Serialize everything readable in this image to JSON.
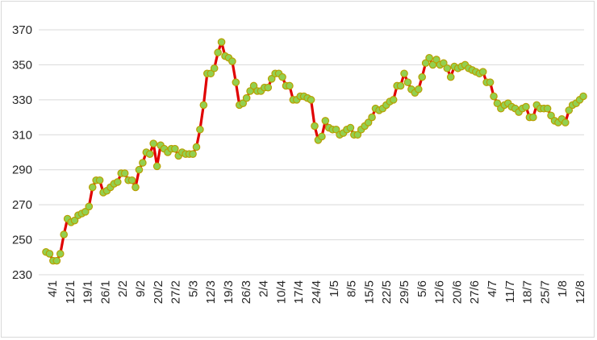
{
  "chart_data": {
    "type": "line",
    "title": "",
    "xlabel": "",
    "ylabel": "",
    "ylim": [
      230,
      370
    ],
    "yticks": [
      230,
      250,
      270,
      290,
      310,
      330,
      350,
      370
    ],
    "xtick_labels": [
      "4/1",
      "12/1",
      "19/1",
      "26/1",
      "2/2",
      "9/2",
      "20/2",
      "27/2",
      "5/3",
      "12/3",
      "19/3",
      "26/3",
      "2/4",
      "10/4",
      "17/4",
      "24/4",
      "1/5",
      "8/5",
      "15/5",
      "22/5",
      "29/5",
      "5/6",
      "12/6",
      "20/6",
      "27/6",
      "4/7",
      "11/7",
      "18/7",
      "25/7",
      "1/8",
      "12/8"
    ],
    "grid": "horizontal",
    "line_color": "#e00000",
    "marker_fill": "#92d050",
    "marker_edge": "#b8a000",
    "series": [
      {
        "values": [
          243,
          242,
          238,
          238,
          242,
          253,
          262,
          260,
          261,
          264,
          265,
          266,
          269,
          280,
          284,
          284,
          277,
          278,
          280,
          282,
          283,
          288,
          288,
          284,
          284,
          280,
          290,
          294,
          300,
          299,
          305,
          292,
          304,
          302,
          300,
          302,
          302,
          298,
          300,
          299,
          299,
          299,
          303,
          313,
          327,
          345,
          345,
          348,
          357,
          363,
          355,
          354,
          352,
          340,
          327,
          328,
          331,
          335,
          338,
          335,
          335,
          337,
          337,
          342,
          345,
          345,
          343,
          338,
          338,
          330,
          330,
          332,
          332,
          331,
          330,
          315,
          307,
          309,
          318,
          314,
          313,
          313,
          310,
          311,
          313,
          314,
          310,
          310,
          313,
          315,
          317,
          320,
          325,
          324,
          325,
          327,
          329,
          330,
          338,
          338,
          345,
          340,
          336,
          334,
          336,
          343,
          351,
          354,
          350,
          353,
          350,
          351,
          348,
          343,
          349,
          348,
          349,
          350,
          348,
          347,
          346,
          345,
          346,
          340,
          340,
          332,
          328,
          325,
          327,
          328,
          326,
          325,
          323,
          325,
          326,
          320,
          320,
          327,
          325,
          325,
          325,
          321,
          318,
          317,
          319,
          317,
          324,
          327,
          328,
          330,
          332
        ]
      }
    ]
  }
}
